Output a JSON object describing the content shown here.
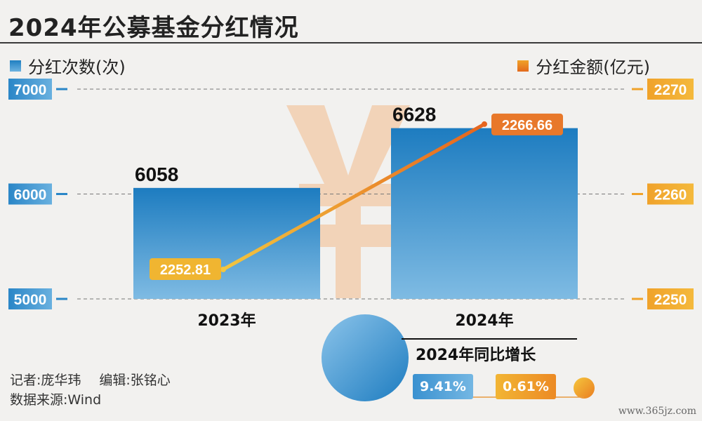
{
  "title": "2024年公募基金分红情况",
  "legend": {
    "left_label": "分红次数(次)",
    "right_label": "分红金额(亿元)"
  },
  "chart_data": {
    "type": "bar+line",
    "categories": [
      "2023年",
      "2024年"
    ],
    "bar_series": {
      "name": "分红次数(次)",
      "values": [
        6058,
        6628
      ],
      "labels": [
        "6058",
        "6628"
      ],
      "axis": "left"
    },
    "line_series": {
      "name": "分红金额(亿元)",
      "values": [
        2252.81,
        2266.66
      ],
      "labels": [
        "2252.81",
        "2266.66"
      ],
      "axis": "right"
    },
    "left_axis": {
      "ticks": [
        5000,
        6000,
        7000
      ],
      "tick_labels": [
        "5000",
        "6000",
        "7000"
      ],
      "range": [
        5000,
        7000
      ]
    },
    "right_axis": {
      "ticks": [
        2250,
        2260,
        2270
      ],
      "tick_labels": [
        "2250",
        "2260",
        "2270"
      ],
      "range": [
        2250,
        2270
      ]
    },
    "grid": "dashed"
  },
  "growth": {
    "title": "2024年同比增长",
    "count_growth": "9.41%",
    "amount_growth": "0.61%"
  },
  "footer": {
    "reporter": "记者:庞华玮",
    "editor": "编辑:张铭心",
    "source": "数据来源:Wind"
  },
  "watermark": "www.365jz.com",
  "colors": {
    "bar": "#1f7fc1",
    "line": "#e8731f",
    "background": "#f2f1ef"
  }
}
